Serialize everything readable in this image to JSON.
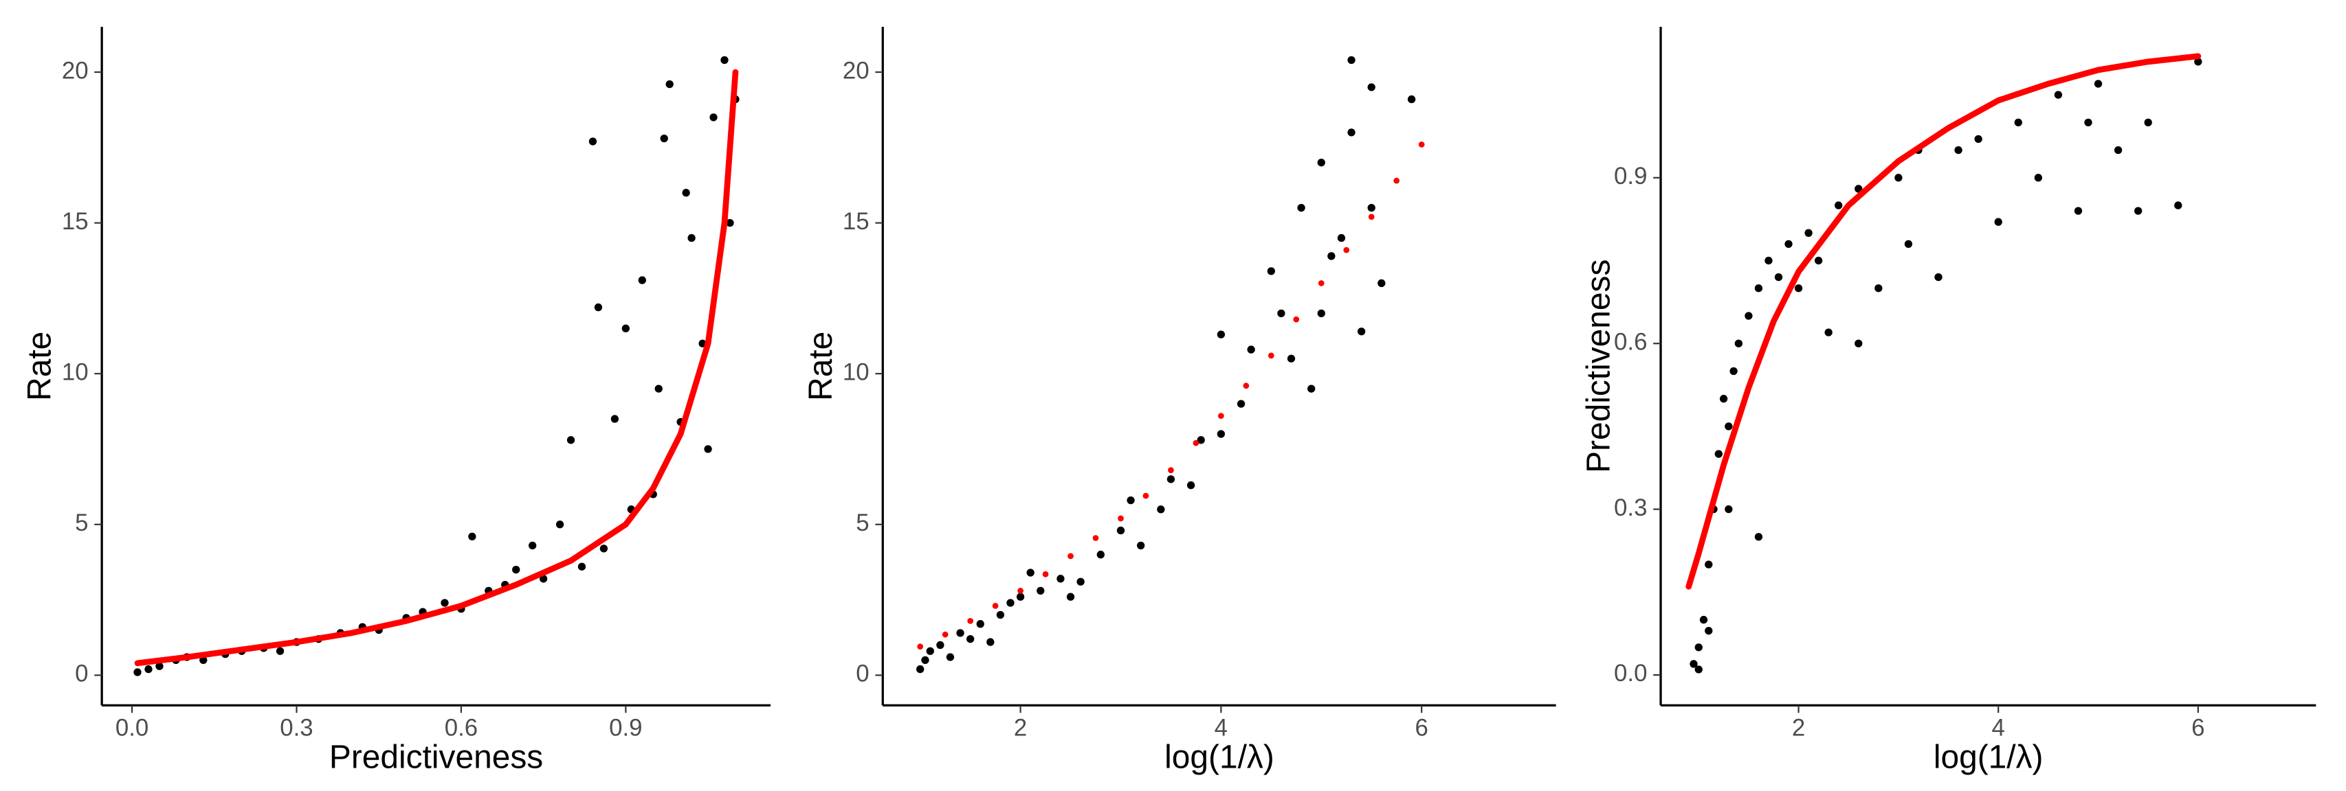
{
  "chart_data": [
    {
      "type": "scatter",
      "xlabel": "Predictiveness",
      "ylabel": "Rate",
      "xlim": [
        -0.055,
        1.164
      ],
      "ylim": [
        -1,
        21.5
      ],
      "xticks": [
        {
          "value": 0,
          "label": "0.0"
        },
        0.3,
        0.6,
        0.9
      ],
      "yticks": [
        0,
        5,
        10,
        15,
        20
      ],
      "series": [
        {
          "color": "#000000",
          "mark": "points",
          "x": [
            0.01,
            0.03,
            0.05,
            0.08,
            0.1,
            0.13,
            0.17,
            0.2,
            0.24,
            0.27,
            0.3,
            0.34,
            0.38,
            0.42,
            0.45,
            0.5,
            0.53,
            0.57,
            0.6,
            0.62,
            0.65,
            0.68,
            0.7,
            0.73,
            0.75,
            0.78,
            0.8,
            0.82,
            0.84,
            0.85,
            0.86,
            0.88,
            0.9,
            0.91,
            0.93,
            0.95,
            0.97,
            0.98,
            1.0,
            1.02,
            1.04,
            1.06,
            1.08,
            1.09,
            1.1,
            0.96,
            1.01,
            1.05
          ],
          "values": [
            0.1,
            0.2,
            0.3,
            0.5,
            0.6,
            0.5,
            0.7,
            0.8,
            0.9,
            0.8,
            1.1,
            1.2,
            1.4,
            1.6,
            1.5,
            1.9,
            2.1,
            2.4,
            2.2,
            4.6,
            2.8,
            3.0,
            3.5,
            4.3,
            3.2,
            5.0,
            7.8,
            3.6,
            17.7,
            12.2,
            4.2,
            8.5,
            11.5,
            5.5,
            13.1,
            6.0,
            17.8,
            19.6,
            8.4,
            14.5,
            11.0,
            18.5,
            20.4,
            15.0,
            19.1,
            9.5,
            16.0,
            7.5
          ]
        },
        {
          "color": "#ff0000",
          "mark": "line",
          "x": [
            0.01,
            0.1,
            0.2,
            0.3,
            0.4,
            0.5,
            0.6,
            0.7,
            0.8,
            0.9,
            0.95,
            1.0,
            1.05,
            1.08,
            1.1
          ],
          "values": [
            0.4,
            0.6,
            0.85,
            1.1,
            1.4,
            1.8,
            2.3,
            3.0,
            3.8,
            5.0,
            6.2,
            8.0,
            11.0,
            15.0,
            20.0
          ]
        }
      ]
    },
    {
      "type": "scatter",
      "xlabel": "log(1/λ)",
      "ylabel": "Rate",
      "xlim": [
        0.627,
        7.34
      ],
      "ylim": [
        -1,
        21.5
      ],
      "xticks": [
        2,
        4,
        6
      ],
      "yticks": [
        0,
        5,
        10,
        15,
        20
      ],
      "series": [
        {
          "color": "#000000",
          "mark": "points",
          "x": [
            1,
            1.05,
            1.1,
            1.2,
            1.3,
            1.4,
            1.5,
            1.6,
            1.8,
            1.9,
            2.0,
            2.2,
            2.4,
            2.6,
            2.8,
            3.0,
            3.1,
            3.2,
            3.4,
            3.5,
            3.7,
            3.8,
            4.0,
            4.0,
            4.2,
            4.3,
            4.5,
            4.6,
            4.7,
            4.8,
            4.9,
            5.0,
            5.0,
            5.1,
            5.2,
            5.3,
            5.3,
            5.4,
            5.5,
            5.5,
            5.6,
            5.9,
            2.1,
            1.7,
            2.5
          ],
          "values": [
            0.2,
            0.5,
            0.8,
            1,
            0.6,
            1.4,
            1.2,
            1.7,
            2.0,
            2.4,
            2.6,
            2.8,
            3.2,
            3.1,
            4.0,
            4.8,
            5.8,
            4.3,
            5.5,
            6.5,
            6.3,
            7.8,
            8.0,
            11.3,
            9.0,
            10.8,
            13.4,
            12.0,
            10.5,
            15.5,
            9.5,
            12.0,
            17.0,
            13.9,
            14.5,
            20.4,
            18.0,
            11.4,
            15.5,
            19.5,
            13.0,
            19.1,
            3.4,
            1.1,
            2.6
          ]
        },
        {
          "color": "#ff0000",
          "mark": "dots",
          "x": [
            1,
            1.25,
            1.5,
            1.75,
            2,
            2.25,
            2.5,
            2.75,
            3,
            3.25,
            3.5,
            3.75,
            4,
            4.25,
            4.5,
            4.75,
            5,
            5.25,
            5.5,
            5.75,
            6
          ],
          "values": [
            0.95,
            1.35,
            1.8,
            2.3,
            2.8,
            3.35,
            3.95,
            4.55,
            5.2,
            5.95,
            6.8,
            7.7,
            8.6,
            9.6,
            10.6,
            11.8,
            13,
            14.1,
            15.2,
            16.4,
            17.6
          ]
        }
      ]
    },
    {
      "type": "scatter",
      "xlabel": "log(1/λ)",
      "ylabel": "Predictiveness",
      "xlim": [
        0.62,
        7.18
      ],
      "ylim": [
        -0.055,
        1.173
      ],
      "xticks": [
        2,
        4,
        6
      ],
      "yticks": [
        {
          "value": 0,
          "label": "0.0"
        },
        0.3,
        0.6,
        0.9
      ],
      "series": [
        {
          "color": "#000000",
          "mark": "points",
          "x": [
            0.95,
            1.0,
            1.05,
            1.1,
            1.15,
            1.2,
            1.25,
            1.3,
            1.35,
            1.4,
            1.5,
            1.6,
            1.6,
            1.7,
            1.8,
            1.9,
            2.0,
            2.1,
            2.2,
            2.3,
            2.4,
            2.6,
            2.6,
            2.8,
            3.0,
            3.1,
            3.2,
            3.4,
            3.6,
            3.8,
            4.0,
            4.2,
            4.4,
            4.6,
            4.8,
            4.9,
            5.0,
            5.2,
            5.4,
            5.5,
            5.8,
            6.0,
            1.0,
            1.1,
            1.3
          ],
          "values": [
            0.02,
            0.05,
            0.1,
            0.2,
            0.3,
            0.4,
            0.5,
            0.45,
            0.55,
            0.6,
            0.65,
            0.25,
            0.7,
            0.75,
            0.72,
            0.78,
            0.7,
            0.8,
            0.75,
            0.62,
            0.85,
            0.88,
            0.6,
            0.7,
            0.9,
            0.78,
            0.95,
            0.72,
            0.95,
            0.97,
            0.82,
            1.0,
            0.9,
            1.05,
            0.84,
            1.0,
            1.07,
            0.95,
            0.84,
            1.0,
            0.85,
            1.11,
            0.01,
            0.08,
            0.3
          ]
        },
        {
          "color": "#ff0000",
          "mark": "line",
          "x": [
            0.9,
            1,
            1.25,
            1.5,
            1.75,
            2,
            2.5,
            3,
            3.5,
            4,
            4.5,
            5,
            5.5,
            6
          ],
          "values": [
            0.16,
            0.22,
            0.38,
            0.52,
            0.64,
            0.73,
            0.85,
            0.93,
            0.99,
            1.04,
            1.07,
            1.095,
            1.11,
            1.12
          ]
        }
      ]
    }
  ]
}
